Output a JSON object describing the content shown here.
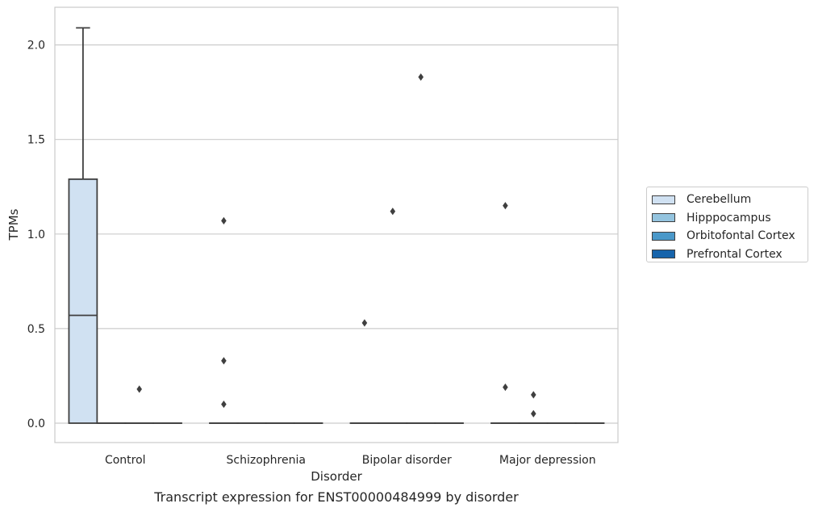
{
  "chart_data": {
    "type": "box",
    "xlabel": "Disorder",
    "ylabel": "TPMs",
    "categories": [
      "Control",
      "Schizophrenia",
      "Bipolar disorder",
      "Major depression"
    ],
    "ylim": [
      -0.1,
      2.2
    ],
    "yticks": [
      0.0,
      0.5,
      1.0,
      1.5,
      2.0
    ],
    "ytick_labels": [
      "0.0",
      "0.5",
      "1.0",
      "1.5",
      "2.0"
    ],
    "grid": "horizontal",
    "legend_position": "right",
    "series": [
      {
        "name": "Cerebellum",
        "color": "#d0e1f2",
        "boxes": [
          {
            "category": "Control",
            "min": 0.0,
            "q1": 0.0,
            "median": 0.57,
            "q3": 1.29,
            "max": 2.09,
            "outliers": []
          },
          {
            "category": "Schizophrenia",
            "min": 0.0,
            "q1": 0.0,
            "median": 0.0,
            "q3": 0.0,
            "max": 0.0,
            "outliers": [
              1.07,
              0.33,
              0.1
            ]
          },
          {
            "category": "Bipolar disorder",
            "min": 0.0,
            "q1": 0.0,
            "median": 0.0,
            "q3": 0.0,
            "max": 0.0,
            "outliers": [
              0.53
            ]
          },
          {
            "category": "Major depression",
            "min": 0.0,
            "q1": 0.0,
            "median": 0.0,
            "q3": 0.0,
            "max": 0.0,
            "outliers": [
              1.15,
              0.19
            ]
          }
        ]
      },
      {
        "name": "Hipppocampus",
        "color": "#94c4df",
        "boxes": [
          {
            "category": "Control",
            "min": 0.0,
            "q1": 0.0,
            "median": 0.0,
            "q3": 0.0,
            "max": 0.0,
            "outliers": []
          },
          {
            "category": "Schizophrenia",
            "min": 0.0,
            "q1": 0.0,
            "median": 0.0,
            "q3": 0.0,
            "max": 0.0,
            "outliers": []
          },
          {
            "category": "Bipolar disorder",
            "min": 0.0,
            "q1": 0.0,
            "median": 0.0,
            "q3": 0.0,
            "max": 0.0,
            "outliers": [
              1.12
            ]
          },
          {
            "category": "Major depression",
            "min": 0.0,
            "q1": 0.0,
            "median": 0.0,
            "q3": 0.0,
            "max": 0.0,
            "outliers": [
              0.15,
              0.05
            ]
          }
        ]
      },
      {
        "name": "Orbitofontal Cortex",
        "color": "#4a98c9",
        "boxes": [
          {
            "category": "Control",
            "min": 0.0,
            "q1": 0.0,
            "median": 0.0,
            "q3": 0.0,
            "max": 0.0,
            "outliers": [
              0.18
            ]
          },
          {
            "category": "Schizophrenia",
            "min": 0.0,
            "q1": 0.0,
            "median": 0.0,
            "q3": 0.0,
            "max": 0.0,
            "outliers": []
          },
          {
            "category": "Bipolar disorder",
            "min": 0.0,
            "q1": 0.0,
            "median": 0.0,
            "q3": 0.0,
            "max": 0.0,
            "outliers": [
              1.83
            ]
          },
          {
            "category": "Major depression",
            "min": 0.0,
            "q1": 0.0,
            "median": 0.0,
            "q3": 0.0,
            "max": 0.0,
            "outliers": []
          }
        ]
      },
      {
        "name": "Prefrontal Cortex",
        "color": "#1764ab",
        "boxes": [
          {
            "category": "Control",
            "min": 0.0,
            "q1": 0.0,
            "median": 0.0,
            "q3": 0.0,
            "max": 0.0,
            "outliers": []
          },
          {
            "category": "Schizophrenia",
            "min": 0.0,
            "q1": 0.0,
            "median": 0.0,
            "q3": 0.0,
            "max": 0.0,
            "outliers": []
          },
          {
            "category": "Bipolar disorder",
            "min": 0.0,
            "q1": 0.0,
            "median": 0.0,
            "q3": 0.0,
            "max": 0.0,
            "outliers": []
          },
          {
            "category": "Major depression",
            "min": 0.0,
            "q1": 0.0,
            "median": 0.0,
            "q3": 0.0,
            "max": 0.0,
            "outliers": []
          }
        ]
      }
    ]
  },
  "caption": "Transcript expression for ENST00000484999 by disorder"
}
